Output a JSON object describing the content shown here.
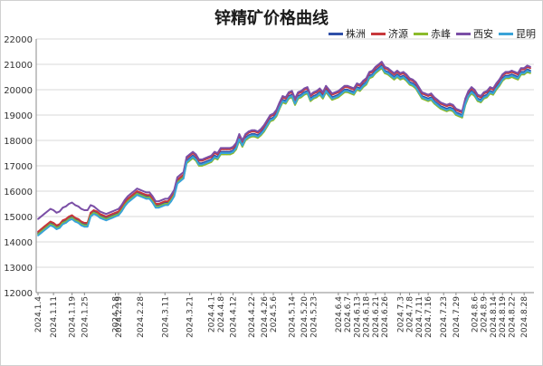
{
  "chart_data": {
    "type": "line",
    "title": "锌精矿价格曲线",
    "xlabel": "",
    "ylabel": "",
    "ylim": [
      12000,
      22000
    ],
    "yticks": [
      12000,
      13000,
      14000,
      15000,
      16000,
      17000,
      18000,
      19000,
      20000,
      21000,
      22000
    ],
    "grid": "horizontal",
    "legend_position": "top-right",
    "x": [
      "2024.1.4",
      "2024.1.5",
      "2024.1.8",
      "2024.1.9",
      "2024.1.10",
      "2024.1.11",
      "2024.1.12",
      "2024.1.15",
      "2024.1.16",
      "2024.1.17",
      "2024.1.18",
      "2024.1.19",
      "2024.1.22",
      "2024.1.23",
      "2024.1.24",
      "2024.1.25",
      "2024.1.26",
      "2024.1.29",
      "2024.1.30",
      "2024.1.31",
      "2024.2.1",
      "2024.2.2",
      "2024.2.5",
      "2024.2.6",
      "2024.2.7",
      "2024.2.8",
      "2024.2.19",
      "2024.2.20",
      "2024.2.21",
      "2024.2.22",
      "2024.2.23",
      "2024.2.26",
      "2024.2.27",
      "2024.2.28",
      "2024.2.29",
      "2024.3.1",
      "2024.3.4",
      "2024.3.5",
      "2024.3.6",
      "2024.3.7",
      "2024.3.8",
      "2024.3.11",
      "2024.3.12",
      "2024.3.13",
      "2024.3.14",
      "2024.3.15",
      "2024.3.18",
      "2024.3.19",
      "2024.3.20",
      "2024.3.21",
      "2024.3.22",
      "2024.3.25",
      "2024.3.26",
      "2024.3.27",
      "2024.3.28",
      "2024.3.29",
      "2024.4.1",
      "2024.4.2",
      "2024.4.3",
      "2024.4.8",
      "2024.4.9",
      "2024.4.10",
      "2024.4.11",
      "2024.4.12",
      "2024.4.15",
      "2024.4.16",
      "2024.4.17",
      "2024.4.18",
      "2024.4.19",
      "2024.4.22",
      "2024.4.23",
      "2024.4.24",
      "2024.4.25",
      "2024.4.26",
      "2024.4.29",
      "2024.4.30",
      "2024.5.6",
      "2024.5.7",
      "2024.5.8",
      "2024.5.9",
      "2024.5.10",
      "2024.5.13",
      "2024.5.14",
      "2024.5.15",
      "2024.5.16",
      "2024.5.17",
      "2024.5.20",
      "2024.5.21",
      "2024.5.22",
      "2024.5.23",
      "2024.5.24",
      "2024.5.27",
      "2024.5.28",
      "2024.5.29",
      "2024.5.30",
      "2024.5.31",
      "2024.6.3",
      "2024.6.4",
      "2024.6.5",
      "2024.6.6",
      "2024.6.7",
      "2024.6.11",
      "2024.6.12",
      "2024.6.13",
      "2024.6.14",
      "2024.6.17",
      "2024.6.18",
      "2024.6.19",
      "2024.6.20",
      "2024.6.21",
      "2024.6.24",
      "2024.6.25",
      "2024.6.26",
      "2024.6.27",
      "2024.6.28",
      "2024.7.1",
      "2024.7.2",
      "2024.7.3",
      "2024.7.4",
      "2024.7.5",
      "2024.7.8",
      "2024.7.9",
      "2024.7.10",
      "2024.7.11",
      "2024.7.12",
      "2024.7.15",
      "2024.7.16",
      "2024.7.17",
      "2024.7.18",
      "2024.7.19",
      "2024.7.22",
      "2024.7.23",
      "2024.7.24",
      "2024.7.25",
      "2024.7.26",
      "2024.7.29",
      "2024.7.30",
      "2024.7.31",
      "2024.8.1",
      "2024.8.2",
      "2024.8.5",
      "2024.8.6",
      "2024.8.7",
      "2024.8.8",
      "2024.8.9",
      "2024.8.12",
      "2024.8.13",
      "2024.8.14",
      "2024.8.15",
      "2024.8.16",
      "2024.8.19",
      "2024.8.20",
      "2024.8.21",
      "2024.8.22",
      "2024.8.23",
      "2024.8.26",
      "2024.8.27",
      "2024.8.28",
      "2024.8.29",
      "2024.8.30"
    ],
    "xtick_labels": [
      "2024.1.4",
      "2024.1.11",
      "2024.1.19",
      "2024.1.25",
      "2024.2.8",
      "2024.2.19",
      "2024.2.28",
      "2024.3.11",
      "2024.3.21",
      "2024.4.1",
      "2024.4.8",
      "2024.4.12",
      "2024.4.22",
      "2024.4.26",
      "2024.5.6",
      "2024.5.14",
      "2024.5.20",
      "2024.5.23",
      "2024.6.4",
      "2024.6.7",
      "2024.6.13",
      "2024.6.18",
      "2024.6.21",
      "2024.6.26",
      "2024.7.3",
      "2024.7.8",
      "2024.7.11",
      "2024.7.16",
      "2024.7.23",
      "2024.7.29",
      "2024.8.6",
      "2024.8.9",
      "2024.8.14",
      "2024.8.19",
      "2024.8.22",
      "2024.8.28"
    ],
    "series": [
      {
        "name": "株洲",
        "color": "#2f4fa8",
        "values": [
          14350,
          14450,
          14550,
          14650,
          14750,
          14700,
          14600,
          14650,
          14800,
          14850,
          14950,
          15000,
          14900,
          14850,
          14750,
          14700,
          14700,
          15100,
          15200,
          15150,
          15050,
          15000,
          14950,
          15000,
          15050,
          15100,
          15150,
          15300,
          15500,
          15650,
          15750,
          15850,
          15950,
          15900,
          15850,
          15800,
          15800,
          15650,
          15450,
          15450,
          15500,
          15550,
          15550,
          15700,
          15900,
          16400,
          16500,
          16600,
          17200,
          17300,
          17400,
          17300,
          17100,
          17100,
          17150,
          17200,
          17250,
          17400,
          17350,
          17550,
          17550,
          17550,
          17550,
          17600,
          17750,
          18100,
          17850,
          18100,
          18200,
          18250,
          18250,
          18200,
          18300,
          18450,
          18650,
          18850,
          18900,
          19050,
          19350,
          19600,
          19550,
          19750,
          19800,
          19500,
          19750,
          19800,
          19900,
          19950,
          19650,
          19750,
          19800,
          19900,
          19750,
          20000,
          19850,
          19700,
          19750,
          19800,
          19900,
          20000,
          20000,
          19950,
          19900,
          20100,
          20050,
          20200,
          20300,
          20550,
          20600,
          20750,
          20850,
          20950,
          20750,
          20700,
          20600,
          20500,
          20600,
          20500,
          20550,
          20450,
          20300,
          20250,
          20150,
          19950,
          19750,
          19700,
          19650,
          19700,
          19550,
          19450,
          19350,
          19300,
          19250,
          19300,
          19250,
          19100,
          19050,
          19000,
          19500,
          19800,
          19950,
          19850,
          19650,
          19600,
          19750,
          19800,
          19950,
          19900,
          20100,
          20250,
          20450,
          20550,
          20550,
          20600,
          20550,
          20500,
          20700,
          20700,
          20800,
          20750
        ]
      },
      {
        "name": "济源",
        "color": "#c8383b",
        "values": [
          14400,
          14500,
          14600,
          14700,
          14800,
          14750,
          14650,
          14700,
          14850,
          14900,
          15000,
          15050,
          14950,
          14900,
          14800,
          14750,
          14750,
          15150,
          15250,
          15200,
          15100,
          15050,
          15000,
          15050,
          15100,
          15150,
          15200,
          15350,
          15550,
          15700,
          15800,
          15900,
          16000,
          15950,
          15900,
          15850,
          15850,
          15700,
          15500,
          15500,
          15550,
          15600,
          15600,
          15750,
          15950,
          16450,
          16550,
          16650,
          17300,
          17400,
          17500,
          17400,
          17200,
          17200,
          17250,
          17300,
          17350,
          17500,
          17450,
          17650,
          17650,
          17650,
          17650,
          17700,
          17850,
          18200,
          17950,
          18200,
          18300,
          18350,
          18350,
          18300,
          18400,
          18550,
          18750,
          18950,
          19000,
          19150,
          19450,
          19700,
          19650,
          19850,
          19900,
          19600,
          19850,
          19900,
          20000,
          20050,
          19750,
          19850,
          19900,
          20000,
          19850,
          20100,
          19950,
          19800,
          19850,
          19900,
          20000,
          20100,
          20100,
          20050,
          20000,
          20200,
          20150,
          20300,
          20400,
          20650,
          20700,
          20850,
          20950,
          21050,
          20850,
          20800,
          20700,
          20600,
          20700,
          20600,
          20650,
          20550,
          20400,
          20350,
          20250,
          20050,
          19850,
          19800,
          19750,
          19800,
          19650,
          19550,
          19450,
          19400,
          19350,
          19400,
          19350,
          19200,
          19150,
          19100,
          19600,
          19900,
          20050,
          19950,
          19750,
          19700,
          19850,
          19900,
          20050,
          20000,
          20200,
          20350,
          20550,
          20650,
          20650,
          20700,
          20650,
          20600,
          20800,
          20800,
          20900,
          20850
        ]
      },
      {
        "name": "赤峰",
        "color": "#8cbb2b",
        "values": [
          14300,
          14400,
          14500,
          14600,
          14700,
          14650,
          14550,
          14600,
          14750,
          14800,
          14900,
          14950,
          14850,
          14800,
          14700,
          14650,
          14650,
          15050,
          15150,
          15100,
          15000,
          14950,
          14900,
          14950,
          15000,
          15050,
          15100,
          15250,
          15450,
          15600,
          15700,
          15800,
          15900,
          15850,
          15800,
          15750,
          15750,
          15600,
          15400,
          15400,
          15450,
          15500,
          15500,
          15650,
          15850,
          16350,
          16450,
          16550,
          17100,
          17200,
          17300,
          17200,
          17000,
          17000,
          17050,
          17100,
          17150,
          17300,
          17250,
          17450,
          17450,
          17450,
          17450,
          17500,
          17650,
          18000,
          17750,
          18000,
          18100,
          18150,
          18150,
          18100,
          18200,
          18350,
          18550,
          18750,
          18800,
          18950,
          19250,
          19500,
          19450,
          19650,
          19700,
          19400,
          19650,
          19700,
          19800,
          19850,
          19550,
          19650,
          19700,
          19800,
          19650,
          19900,
          19750,
          19600,
          19650,
          19700,
          19800,
          19900,
          19900,
          19850,
          19800,
          20000,
          19950,
          20100,
          20200,
          20450,
          20500,
          20650,
          20750,
          20850,
          20650,
          20600,
          20500,
          20400,
          20500,
          20400,
          20450,
          20350,
          20200,
          20150,
          20050,
          19850,
          19650,
          19600,
          19550,
          19600,
          19450,
          19350,
          19250,
          19200,
          19150,
          19200,
          19150,
          19000,
          18950,
          18900,
          19400,
          19700,
          19850,
          19750,
          19550,
          19500,
          19650,
          19700,
          19850,
          19800,
          20000,
          20150,
          20350,
          20450,
          20450,
          20500,
          20450,
          20400,
          20600,
          20600,
          20700,
          20650
        ]
      },
      {
        "name": "西安",
        "color": "#7b4fa6",
        "values": [
          14900,
          15000,
          15100,
          15200,
          15300,
          15250,
          15150,
          15200,
          15350,
          15400,
          15500,
          15550,
          15450,
          15400,
          15300,
          15250,
          15250,
          15450,
          15400,
          15300,
          15200,
          15150,
          15100,
          15150,
          15200,
          15250,
          15300,
          15450,
          15650,
          15800,
          15900,
          16000,
          16100,
          16050,
          16000,
          15950,
          15950,
          15800,
          15600,
          15600,
          15650,
          15700,
          15700,
          15850,
          16050,
          16550,
          16650,
          16750,
          17350,
          17450,
          17550,
          17450,
          17250,
          17250,
          17300,
          17350,
          17400,
          17550,
          17500,
          17700,
          17700,
          17700,
          17700,
          17750,
          17900,
          18250,
          18000,
          18250,
          18350,
          18400,
          18400,
          18350,
          18450,
          18600,
          18800,
          19000,
          19050,
          19200,
          19500,
          19750,
          19700,
          19900,
          19950,
          19650,
          19900,
          19950,
          20050,
          20100,
          19800,
          19900,
          19950,
          20050,
          19900,
          20150,
          20000,
          19850,
          19900,
          19950,
          20050,
          20150,
          20150,
          20100,
          20050,
          20250,
          20200,
          20350,
          20450,
          20700,
          20750,
          20900,
          21000,
          21100,
          20900,
          20850,
          20750,
          20650,
          20750,
          20650,
          20700,
          20600,
          20450,
          20400,
          20300,
          20100,
          19900,
          19850,
          19800,
          19850,
          19700,
          19600,
          19500,
          19450,
          19400,
          19450,
          19400,
          19250,
          19200,
          19150,
          19650,
          19950,
          20100,
          20000,
          19800,
          19750,
          19900,
          19950,
          20100,
          20050,
          20250,
          20400,
          20600,
          20700,
          20700,
          20750,
          20700,
          20650,
          20850,
          20850,
          20950,
          20900
        ]
      },
      {
        "name": "昆明",
        "color": "#3aa3d8",
        "values": [
          14250,
          14350,
          14450,
          14550,
          14650,
          14600,
          14500,
          14550,
          14700,
          14750,
          14850,
          14900,
          14800,
          14750,
          14650,
          14600,
          14600,
          15000,
          15100,
          15050,
          14950,
          14900,
          14850,
          14900,
          14950,
          15000,
          15050,
          15200,
          15400,
          15550,
          15650,
          15750,
          15850,
          15800,
          15750,
          15700,
          15700,
          15550,
          15350,
          15350,
          15400,
          15450,
          15450,
          15600,
          15800,
          16300,
          16400,
          16500,
          17150,
          17250,
          17350,
          17250,
          17050,
          17050,
          17100,
          17150,
          17200,
          17350,
          17300,
          17500,
          17500,
          17500,
          17500,
          17550,
          17700,
          18050,
          17800,
          18050,
          18150,
          18200,
          18200,
          18150,
          18250,
          18400,
          18600,
          18800,
          18850,
          19000,
          19300,
          19550,
          19500,
          19700,
          19750,
          19450,
          19700,
          19750,
          19850,
          19900,
          19600,
          19700,
          19750,
          19850,
          19700,
          19950,
          19800,
          19650,
          19700,
          19750,
          19850,
          19950,
          19950,
          19900,
          19850,
          20050,
          20000,
          20150,
          20250,
          20500,
          20550,
          20700,
          20800,
          20900,
          20700,
          20650,
          20550,
          20450,
          20550,
          20450,
          20500,
          20400,
          20250,
          20200,
          20100,
          19900,
          19700,
          19650,
          19600,
          19650,
          19500,
          19400,
          19300,
          19250,
          19200,
          19250,
          19200,
          19050,
          19000,
          18950,
          19450,
          19750,
          19900,
          19800,
          19600,
          19550,
          19700,
          19750,
          19900,
          19850,
          20050,
          20200,
          20400,
          20500,
          20500,
          20550,
          20500,
          20450,
          20650,
          20650,
          20750,
          20700
        ]
      }
    ]
  }
}
